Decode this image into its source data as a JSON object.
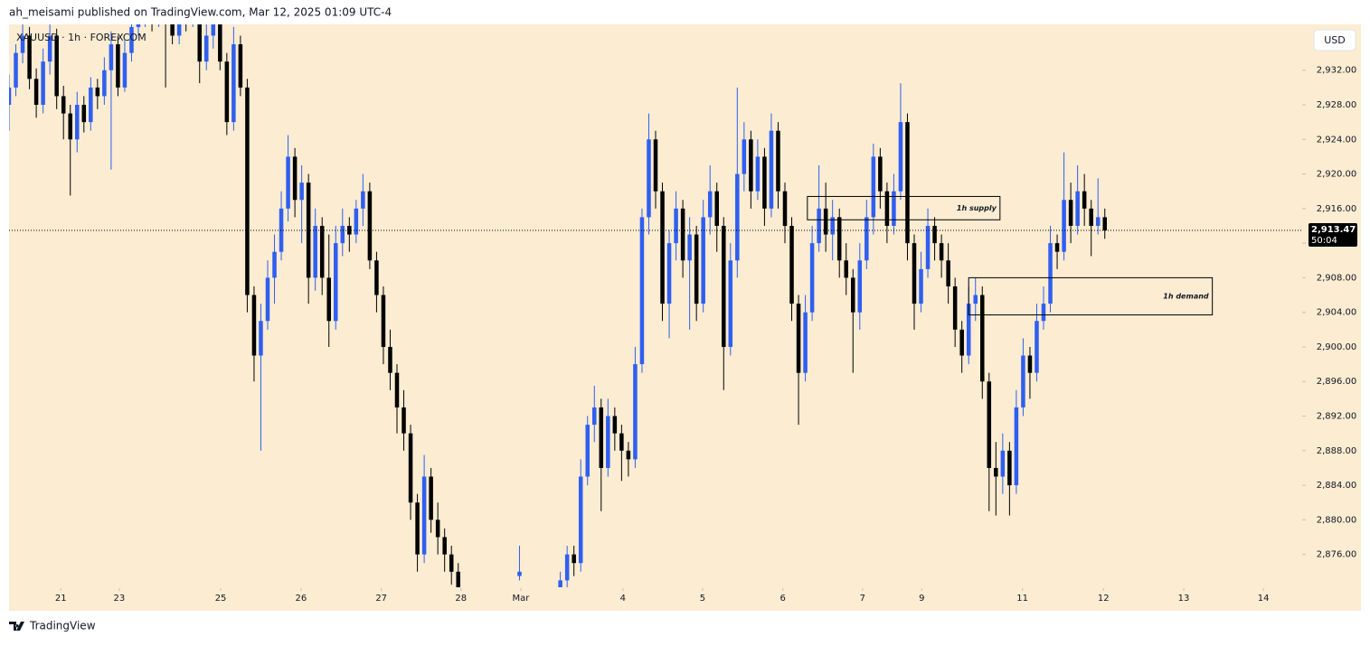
{
  "header": {
    "text": "ah_meisami published on TradingView.com, Mar 12, 2025 01:09 UTC-4"
  },
  "footer": {
    "brand": "TradingView"
  },
  "chart_data": {
    "type": "candlestick",
    "symbol": "XAUUSD · 1h · FOREXCOM",
    "currency": "USD",
    "up_color": "#2f5ff0",
    "down_color": "#000000",
    "background": "#fbecd2",
    "xlim": [
      0,
      190
    ],
    "ylim": [
      2872.2,
      2937.3
    ],
    "yticks": [
      {
        "value": 2876,
        "label": "2,876.00"
      },
      {
        "value": 2880,
        "label": "2,880.00"
      },
      {
        "value": 2884,
        "label": "2,884.00"
      },
      {
        "value": 2888,
        "label": "2,888.00"
      },
      {
        "value": 2892,
        "label": "2,892.00"
      },
      {
        "value": 2896,
        "label": "2,896.00"
      },
      {
        "value": 2900,
        "label": "2,900.00"
      },
      {
        "value": 2904,
        "label": "2,904.00"
      },
      {
        "value": 2908,
        "label": "2,908.00"
      },
      {
        "value": 2912,
        "label": "2,912.00"
      },
      {
        "value": 2916,
        "label": "2,916.00"
      },
      {
        "value": 2920,
        "label": "2,920.00"
      },
      {
        "value": 2924,
        "label": "2,924.00"
      },
      {
        "value": 2928,
        "label": "2,928.00"
      },
      {
        "value": 2932,
        "label": "2,932.00"
      }
    ],
    "xticks": [
      {
        "value": 7.6,
        "label": "21"
      },
      {
        "value": 16.2,
        "label": "23"
      },
      {
        "value": 31.1,
        "label": "25"
      },
      {
        "value": 42.9,
        "label": "26"
      },
      {
        "value": 54.7,
        "label": "27"
      },
      {
        "value": 66.4,
        "label": "28"
      },
      {
        "value": 75.2,
        "label": "Mar"
      },
      {
        "value": 90.2,
        "label": "4"
      },
      {
        "value": 101.9,
        "label": "5"
      },
      {
        "value": 113.7,
        "label": "6"
      },
      {
        "value": 125.4,
        "label": "7"
      },
      {
        "value": 134.1,
        "label": "9"
      },
      {
        "value": 148.9,
        "label": "11"
      },
      {
        "value": 160.8,
        "label": "12"
      },
      {
        "value": 172.6,
        "label": "13"
      },
      {
        "value": 184.3,
        "label": "14"
      }
    ],
    "last_price": {
      "value": 2913.47,
      "label": "2,913.47"
    },
    "countdown": "50:04",
    "zones": [
      {
        "label": "1h supply",
        "x": [
          117.3,
          145.6
        ],
        "y": [
          2914.7,
          2917.4
        ]
      },
      {
        "label": "1h demand",
        "x": [
          141.0,
          176.8
        ],
        "y": [
          2903.7,
          2908.0
        ]
      }
    ],
    "ohlc": [
      [
        2928,
        2931.5,
        2925,
        2930
      ],
      [
        2930,
        2935,
        2929,
        2934
      ],
      [
        2934,
        2937.5,
        2932.8,
        2936
      ],
      [
        2936,
        2937,
        2929.8,
        2931
      ],
      [
        2931,
        2932.2,
        2926.5,
        2928
      ],
      [
        2928,
        2934.5,
        2927,
        2933
      ],
      [
        2933,
        2937.8,
        2931.5,
        2936
      ],
      [
        2936,
        2936.8,
        2927.5,
        2929
      ],
      [
        2929,
        2930.2,
        2924,
        2927
      ],
      [
        2927,
        2928,
        2917.5,
        2924
      ],
      [
        2924,
        2929.5,
        2922.5,
        2928
      ],
      [
        2928,
        2929,
        2924.8,
        2926
      ],
      [
        2926,
        2931.2,
        2925,
        2930
      ],
      [
        2930,
        2931,
        2927.5,
        2929
      ],
      [
        2929,
        2933.5,
        2928,
        2932
      ],
      [
        2932,
        2936.5,
        2920.5,
        2935
      ],
      [
        2935,
        2936,
        2929,
        2930
      ],
      [
        2930,
        2935.5,
        2929.5,
        2934
      ],
      [
        2934,
        2938.5,
        2933,
        2937
      ],
      [
        2937,
        2939.5,
        2936,
        2938
      ],
      [
        2938,
        2941.5,
        2937,
        2940
      ],
      [
        2940,
        2941,
        2936.5,
        2938
      ],
      [
        2938,
        2942.5,
        2937,
        2941
      ],
      [
        2941,
        2942,
        2930,
        2939
      ],
      [
        2939,
        2940,
        2935,
        2936
      ],
      [
        2936,
        2941.5,
        2935,
        2940
      ],
      [
        2940,
        2941,
        2936.5,
        2938
      ],
      [
        2938,
        2942.5,
        2937,
        2941
      ],
      [
        2941,
        2942,
        2930.5,
        2933
      ],
      [
        2933,
        2938,
        2932,
        2936
      ],
      [
        2936,
        2940,
        2934.5,
        2938
      ],
      [
        2938,
        2939,
        2932,
        2933
      ],
      [
        2933,
        2934,
        2924.5,
        2926
      ],
      [
        2926,
        2937,
        2925,
        2935
      ],
      [
        2935,
        2936,
        2929,
        2930
      ],
      [
        2930,
        2931,
        2904,
        2906
      ],
      [
        2906,
        2907,
        2896,
        2899
      ],
      [
        2899,
        2905,
        2888,
        2903
      ],
      [
        2903,
        2910,
        2902,
        2908
      ],
      [
        2908,
        2913,
        2905,
        2911
      ],
      [
        2911,
        2918,
        2910,
        2916
      ],
      [
        2916,
        2924.5,
        2914.5,
        2922
      ],
      [
        2922,
        2923,
        2915,
        2917
      ],
      [
        2917,
        2921,
        2912,
        2919
      ],
      [
        2919,
        2920,
        2905,
        2908
      ],
      [
        2908,
        2916,
        2906.5,
        2914
      ],
      [
        2914,
        2915,
        2906,
        2908
      ],
      [
        2908,
        2913,
        2900,
        2903
      ],
      [
        2903,
        2914,
        2902,
        2912
      ],
      [
        2912,
        2916,
        2910.5,
        2914
      ],
      [
        2914,
        2915,
        2911,
        2913
      ],
      [
        2913,
        2917,
        2912,
        2916
      ],
      [
        2916,
        2920,
        2914,
        2918
      ],
      [
        2918,
        2919,
        2909,
        2910
      ],
      [
        2910,
        2911,
        2904,
        2906
      ],
      [
        2906,
        2907,
        2898,
        2900
      ],
      [
        2900,
        2902,
        2895,
        2897
      ],
      [
        2897,
        2898,
        2890,
        2893
      ],
      [
        2893,
        2895,
        2888,
        2890
      ],
      [
        2890,
        2891,
        2880,
        2882
      ],
      [
        2882,
        2883,
        2874,
        2876
      ],
      [
        2876,
        2887.5,
        2875,
        2885
      ],
      [
        2885,
        2886,
        2878.5,
        2880
      ],
      [
        2880,
        2882,
        2876,
        2878
      ],
      [
        2878,
        2879,
        2874,
        2876
      ],
      [
        2876,
        2877,
        2872.5,
        2874
      ],
      [
        2874,
        2875,
        2871,
        2872
      ],
      null,
      null,
      null,
      null,
      null,
      null,
      null,
      null,
      [
        2873.5,
        2877,
        2873,
        2874
      ],
      null,
      null,
      null,
      null,
      null,
      [
        2872,
        2874,
        2871,
        2873
      ],
      [
        2873,
        2877,
        2872,
        2876
      ],
      [
        2876,
        2877,
        2873.5,
        2875
      ],
      [
        2875,
        2887,
        2874,
        2885
      ],
      [
        2885,
        2892,
        2884,
        2891
      ],
      [
        2891,
        2895.5,
        2889,
        2893
      ],
      [
        2893,
        2894,
        2881,
        2886
      ],
      [
        2886,
        2894,
        2885,
        2892
      ],
      [
        2892,
        2893,
        2888,
        2890
      ],
      [
        2890,
        2891,
        2884.5,
        2888
      ],
      [
        2888,
        2889,
        2885,
        2887
      ],
      [
        2887,
        2900,
        2886,
        2898
      ],
      [
        2898,
        2916,
        2897,
        2915
      ],
      [
        2915,
        2927,
        2913,
        2924
      ],
      [
        2924,
        2925,
        2916,
        2918
      ],
      [
        2918,
        2919,
        2903,
        2905
      ],
      [
        2905,
        2913.5,
        2901,
        2912
      ],
      [
        2912,
        2918,
        2910,
        2916
      ],
      [
        2916,
        2917,
        2908,
        2910
      ],
      [
        2910,
        2915,
        2902,
        2913
      ],
      [
        2913,
        2914,
        2903,
        2905
      ],
      [
        2905,
        2917,
        2904,
        2915
      ],
      [
        2915,
        2921,
        2913,
        2918
      ],
      [
        2918,
        2919,
        2911,
        2914
      ],
      [
        2914,
        2915,
        2895,
        2900
      ],
      [
        2900,
        2912,
        2899,
        2910
      ],
      [
        2910,
        2930,
        2908,
        2920
      ],
      [
        2920,
        2926,
        2918,
        2924
      ],
      [
        2924,
        2925,
        2916,
        2918
      ],
      [
        2918,
        2924,
        2917,
        2922
      ],
      [
        2922,
        2923,
        2914,
        2916
      ],
      [
        2916,
        2927,
        2915,
        2925
      ],
      [
        2925,
        2926,
        2916,
        2918
      ],
      [
        2918,
        2919,
        2912,
        2914
      ],
      [
        2914,
        2915,
        2903,
        2905
      ],
      [
        2905,
        2906,
        2891,
        2897
      ],
      [
        2897,
        2906,
        2896,
        2904
      ],
      [
        2904,
        2914,
        2903,
        2912
      ],
      [
        2912,
        2921,
        2911,
        2916
      ],
      [
        2916,
        2919,
        2911,
        2913
      ],
      [
        2913,
        2917,
        2910,
        2915
      ],
      [
        2915,
        2916,
        2908,
        2910
      ],
      [
        2910,
        2912,
        2906,
        2908
      ],
      [
        2908,
        2909,
        2897,
        2904
      ],
      [
        2904,
        2912,
        2902,
        2910
      ],
      [
        2910,
        2917,
        2909,
        2915
      ],
      [
        2915,
        2923.5,
        2913,
        2922
      ],
      [
        2922,
        2923,
        2916,
        2918
      ],
      [
        2918,
        2919,
        2912,
        2914
      ],
      [
        2914,
        2920,
        2913,
        2918
      ],
      [
        2918,
        2930.5,
        2917,
        2926
      ],
      [
        2926,
        2927,
        2910,
        2912
      ],
      [
        2912,
        2913,
        2902,
        2905
      ],
      [
        2905,
        2911,
        2904,
        2909
      ],
      [
        2909,
        2916,
        2908,
        2914
      ],
      [
        2914,
        2915,
        2910,
        2912
      ],
      [
        2912,
        2913,
        2908,
        2910
      ],
      [
        2910,
        2912,
        2905,
        2907
      ],
      [
        2907,
        2908,
        2900,
        2902
      ],
      [
        2902,
        2903,
        2897,
        2899
      ],
      [
        2899,
        2907,
        2898,
        2905
      ],
      [
        2905,
        2908,
        2903,
        2906
      ],
      [
        2906,
        2907,
        2894,
        2896
      ],
      [
        2896,
        2897,
        2881,
        2886
      ],
      [
        2886,
        2889,
        2880.5,
        2885
      ],
      [
        2885,
        2890,
        2883,
        2888
      ],
      [
        2888,
        2889,
        2880.5,
        2884
      ],
      [
        2884,
        2895,
        2883,
        2893
      ],
      [
        2893,
        2901,
        2892,
        2899
      ],
      [
        2899,
        2900,
        2894,
        2897
      ],
      [
        2897,
        2905,
        2896,
        2903
      ],
      [
        2903,
        2907,
        2902,
        2905
      ],
      [
        2905,
        2914,
        2904,
        2912
      ],
      [
        2912,
        2913,
        2909,
        2911
      ],
      [
        2911,
        2922.5,
        2910,
        2917
      ],
      [
        2917,
        2919,
        2912,
        2914
      ],
      [
        2914,
        2921,
        2913,
        2918
      ],
      [
        2918,
        2920,
        2914,
        2916
      ],
      [
        2916,
        2917,
        2910.5,
        2914
      ],
      [
        2914,
        2919.5,
        2913,
        2915
      ],
      [
        2915,
        2916,
        2912.5,
        2913.47
      ]
    ]
  }
}
